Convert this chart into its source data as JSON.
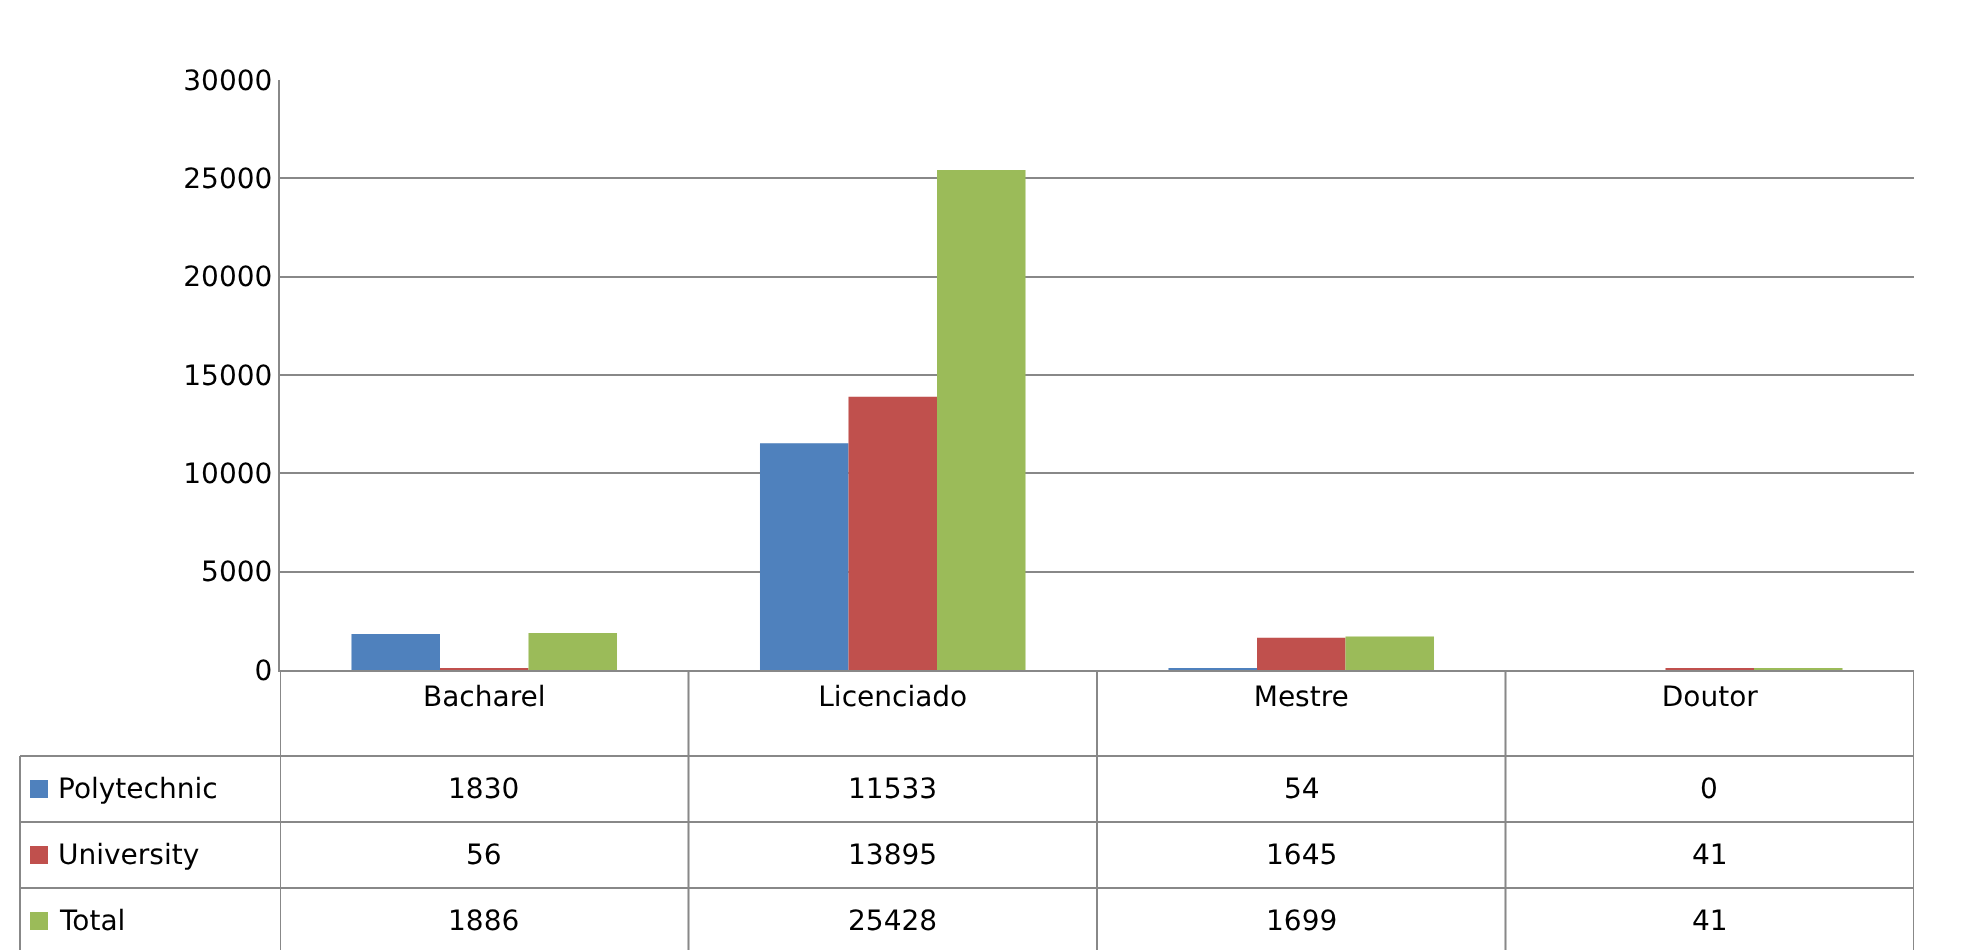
{
  "chart_data": {
    "type": "bar",
    "categories": [
      "Bacharel",
      "Licenciado",
      "Mestre",
      "Doutor"
    ],
    "series": [
      {
        "name": "Polytechnic",
        "color": "#4f81bd",
        "values": [
          1830,
          11533,
          54,
          0
        ]
      },
      {
        "name": "University",
        "color": "#c0504d",
        "values": [
          56,
          13895,
          1645,
          41
        ]
      },
      {
        "name": "Total",
        "color": "#9bbb59",
        "values": [
          1886,
          25428,
          1699,
          41
        ]
      }
    ],
    "ylim": [
      0,
      30000
    ],
    "yticks": [
      0,
      5000,
      10000,
      15000,
      20000,
      25000,
      30000
    ],
    "grid": "y",
    "legend": "bottom",
    "data_labels": true
  }
}
